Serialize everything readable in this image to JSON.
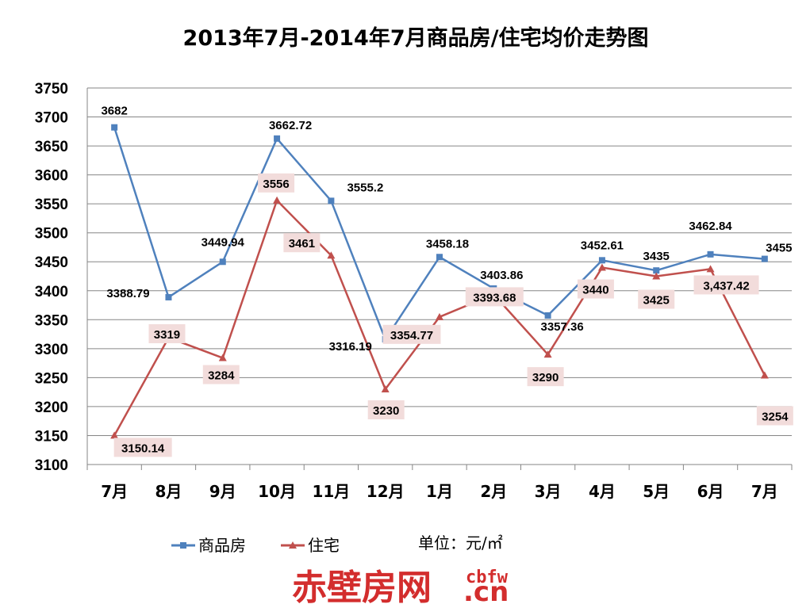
{
  "chart_data": {
    "type": "line",
    "title": "2013年7月-2014年7月商品房/住宅均价走势图",
    "categories": [
      "7月",
      "8月",
      "9月",
      "10月",
      "11月",
      "12月",
      "1月",
      "2月",
      "3月",
      "4月",
      "5月",
      "6月",
      "7月"
    ],
    "ylim": [
      3100,
      3750
    ],
    "yticks": [
      3100,
      3150,
      3200,
      3250,
      3300,
      3350,
      3400,
      3450,
      3500,
      3550,
      3600,
      3650,
      3700,
      3750
    ],
    "grid": true,
    "legend_position": "bottom-left",
    "unit": "单位：元/㎡",
    "series": [
      {
        "name": "商品房",
        "color": "#4f81bd",
        "marker": "square",
        "values": [
          3682,
          3388.79,
          3449.94,
          3662.72,
          3555.2,
          3316.19,
          3458.18,
          3403.86,
          3357.36,
          3452.61,
          3435,
          3462.84,
          3455
        ],
        "labels": [
          "3682",
          "3388.79",
          "3449.94",
          "3662.72",
          "3555.2",
          "3316.19",
          "3458.18",
          "3403.86",
          "3357.36",
          "3452.61",
          "3435",
          "3462.84",
          "3455"
        ]
      },
      {
        "name": "住宅",
        "color": "#c0504d",
        "marker": "triangle",
        "values": [
          3150.14,
          3319,
          3284,
          3556,
          3461,
          3230,
          3354.77,
          3393.68,
          3290,
          3440,
          3425,
          3437.42,
          3254
        ],
        "labels": [
          "3150.14",
          "3319",
          "3284",
          "3556",
          "3461",
          "3230",
          "3354.77",
          "3393.68",
          "3290",
          "3440",
          "3425",
          "3,437.42",
          "3254"
        ]
      }
    ]
  },
  "watermark": {
    "cn": "赤壁房网",
    "en": "cbfw",
    "domain": ".cn"
  }
}
